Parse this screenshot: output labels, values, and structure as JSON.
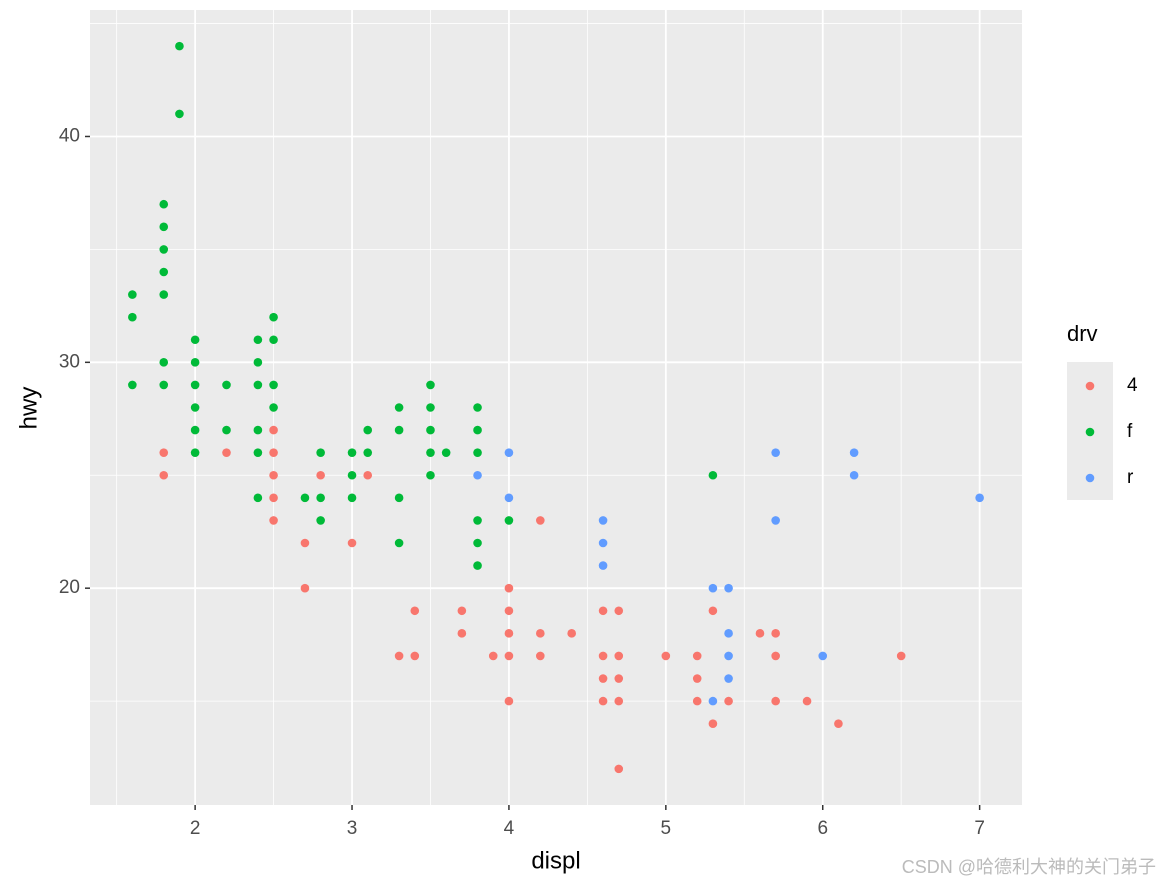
{
  "chart_data": {
    "type": "scatter",
    "x_label": "displ",
    "y_label": "hwy",
    "xlim": [
      1.33,
      7.27
    ],
    "ylim": [
      10.4,
      45.6
    ],
    "xticks": [
      2,
      3,
      4,
      5,
      6,
      7
    ],
    "yticks": [
      20,
      30,
      40
    ],
    "x_minor_ticks": [
      1.5,
      2.5,
      3.5,
      4.5,
      5.5,
      6.5
    ],
    "y_minor_ticks": [
      15,
      25,
      35,
      45
    ],
    "grid": true,
    "legend_title": "drv",
    "legend_position": "right",
    "series": [
      {
        "name": "4",
        "color": "#F8766D",
        "x": [
          1.8,
          1.8,
          2.2,
          2.5,
          2.5,
          2.5,
          2.5,
          2.5,
          2.7,
          2.7,
          2.8,
          3.0,
          3.1,
          3.3,
          3.4,
          3.4,
          3.7,
          3.7,
          3.9,
          4.0,
          4.0,
          4.0,
          4.0,
          4.0,
          4.2,
          4.2,
          4.2,
          4.4,
          4.6,
          4.6,
          4.6,
          4.6,
          4.7,
          4.7,
          4.7,
          4.7,
          4.7,
          5.0,
          5.2,
          5.2,
          5.2,
          5.3,
          5.3,
          5.4,
          5.6,
          5.7,
          5.7,
          5.7,
          5.9,
          6.1,
          6.5
        ],
        "values": [
          26,
          25,
          26,
          27,
          26,
          25,
          24,
          23,
          22,
          20,
          25,
          22,
          25,
          17,
          19,
          17,
          19,
          18,
          17,
          20,
          19,
          18,
          17,
          15,
          23,
          18,
          17,
          18,
          19,
          17,
          16,
          15,
          19,
          17,
          16,
          15,
          12,
          17,
          17,
          16,
          15,
          19,
          14,
          15,
          18,
          18,
          17,
          15,
          15,
          14,
          17
        ]
      },
      {
        "name": "f",
        "color": "#00BA38",
        "x": [
          1.6,
          1.6,
          1.6,
          1.8,
          1.8,
          1.8,
          1.8,
          1.8,
          1.8,
          1.8,
          1.9,
          1.9,
          2.0,
          2.0,
          2.0,
          2.0,
          2.0,
          2.0,
          2.2,
          2.2,
          2.4,
          2.4,
          2.4,
          2.4,
          2.4,
          2.4,
          2.5,
          2.5,
          2.5,
          2.5,
          2.7,
          2.8,
          2.8,
          2.8,
          3.0,
          3.0,
          3.0,
          3.1,
          3.1,
          3.3,
          3.3,
          3.3,
          3.3,
          3.5,
          3.5,
          3.5,
          3.5,
          3.5,
          3.6,
          3.8,
          3.8,
          3.8,
          3.8,
          3.8,
          3.8,
          4.0,
          5.3
        ],
        "values": [
          33,
          32,
          29,
          37,
          36,
          35,
          34,
          33,
          30,
          29,
          44,
          41,
          31,
          30,
          29,
          28,
          27,
          26,
          29,
          27,
          31,
          30,
          29,
          27,
          26,
          24,
          32,
          31,
          29,
          28,
          24,
          26,
          24,
          23,
          26,
          25,
          24,
          27,
          26,
          28,
          27,
          24,
          22,
          29,
          28,
          27,
          26,
          25,
          26,
          28,
          27,
          26,
          23,
          22,
          21,
          23,
          25
        ]
      },
      {
        "name": "r",
        "color": "#619CFF",
        "x": [
          3.8,
          4.0,
          4.0,
          4.6,
          4.6,
          4.6,
          5.3,
          5.3,
          5.4,
          5.4,
          5.4,
          5.4,
          5.7,
          5.7,
          6.0,
          6.2,
          6.2,
          7.0
        ],
        "values": [
          25,
          26,
          24,
          23,
          22,
          21,
          20,
          15,
          20,
          18,
          17,
          16,
          26,
          23,
          17,
          26,
          25,
          24
        ]
      }
    ]
  },
  "watermark": "CSDN @哈德利大神的关门弟子"
}
